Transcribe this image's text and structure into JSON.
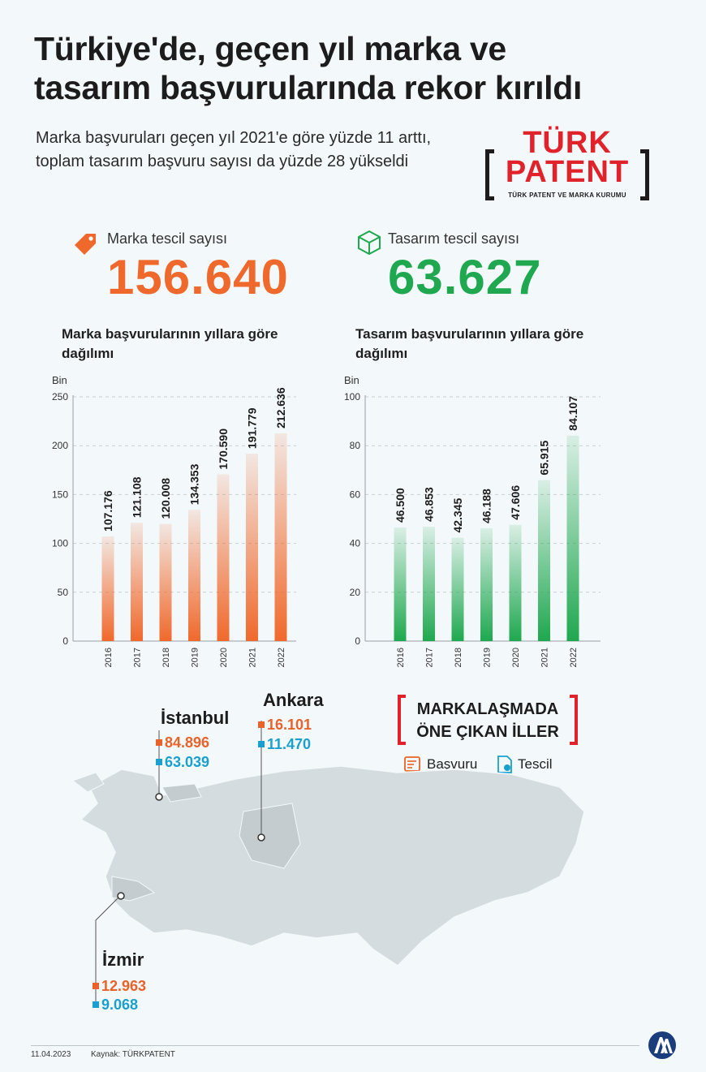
{
  "title_line1": "Türkiye'de, geçen yıl marka ve",
  "title_line2": "tasarım başvurularında rekor kırıldı",
  "subtitle": "Marka başvuruları geçen yıl 2021'e göre yüzde 11 arttı, toplam tasarım başvuru sayısı da yüzde 28 yükseldi",
  "logo": {
    "line1": "TÜRK",
    "line2": "PATENT",
    "line3": "TÜRK PATENT VE MARKA KURUMU"
  },
  "stats": {
    "marka": {
      "label": "Marka tescil sayısı",
      "value": "156.640",
      "color": "#f0692c",
      "icon": "tag-icon"
    },
    "tasarim": {
      "label": "Tasarım tescil sayısı",
      "value": "63.627",
      "color": "#1fa84f",
      "icon": "cube-icon"
    }
  },
  "chart_data": [
    {
      "type": "bar",
      "title": "Marka başvurularının yıllara göre dağılımı",
      "ylabel": "Bin",
      "categories": [
        "2016",
        "2017",
        "2018",
        "2019",
        "2020",
        "2021",
        "2022"
      ],
      "values": [
        107.176,
        121.108,
        120.008,
        134.353,
        170.59,
        191.779,
        212.636
      ],
      "value_labels": [
        "107.176",
        "121.108",
        "120.008",
        "134.353",
        "170.590",
        "191.779",
        "212.636"
      ],
      "yticks": [
        "0",
        "50",
        "100",
        "150",
        "200",
        "250"
      ],
      "ylim": [
        0,
        250
      ],
      "color": "#f0692c",
      "grid": true
    },
    {
      "type": "bar",
      "title": "Tasarım başvurularının yıllara göre dağılımı",
      "ylabel": "Bin",
      "categories": [
        "2016",
        "2017",
        "2018",
        "2019",
        "2020",
        "2021",
        "2022"
      ],
      "values": [
        46.5,
        46.853,
        42.345,
        46.188,
        47.606,
        65.915,
        84.107
      ],
      "value_labels": [
        "46.500",
        "46.853",
        "42.345",
        "46.188",
        "47.606",
        "65.915",
        "84.107"
      ],
      "yticks": [
        "0",
        "20",
        "40",
        "60",
        "80",
        "100"
      ],
      "ylim": [
        0,
        100
      ],
      "color": "#1fa84f",
      "grid": true
    }
  ],
  "legend": {
    "title_line1": "MARKALAŞMADA",
    "title_line2": "ÖNE ÇIKAN İLLER",
    "basvuru": "Başvuru",
    "tescil": "Tescil",
    "basvuru_color": "#e8622a",
    "tescil_color": "#1aa0cf"
  },
  "cities": {
    "istanbul": {
      "name": "İstanbul",
      "basvuru": "84.896",
      "tescil": "63.039"
    },
    "ankara": {
      "name": "Ankara",
      "basvuru": "16.101",
      "tescil": "11.470"
    },
    "izmir": {
      "name": "İzmir",
      "basvuru": "12.963",
      "tescil": "9.068"
    }
  },
  "footer": {
    "date": "11.04.2023",
    "source": "Kaynak: TÜRKPATENT"
  }
}
